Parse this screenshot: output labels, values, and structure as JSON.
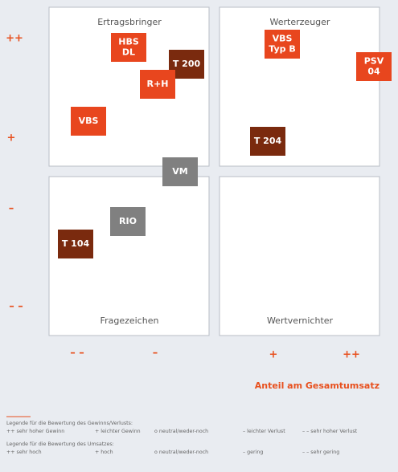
{
  "quadrants": [
    "Ertragsbringer",
    "Werterzeuger",
    "Fragezeichen",
    "Wertvernichter"
  ],
  "y_axis": {
    "labels": [
      "++",
      "+",
      "–",
      "– –"
    ]
  },
  "x_axis": {
    "labels": [
      "– –",
      "–",
      "+",
      "++"
    ],
    "title": "Anteil am Gesamtumsatz"
  },
  "items": [
    {
      "lines": [
        "HBS",
        "DL"
      ],
      "kind": "strong"
    },
    {
      "lines": [
        "T 200"
      ],
      "kind": "dark"
    },
    {
      "lines": [
        "R+H"
      ],
      "kind": "strong"
    },
    {
      "lines": [
        "VBS"
      ],
      "kind": "strong"
    },
    {
      "lines": [
        "VBS",
        "Typ B"
      ],
      "kind": "strong"
    },
    {
      "lines": [
        "PSV",
        "04"
      ],
      "kind": "strong"
    },
    {
      "lines": [
        "T 204"
      ],
      "kind": "dark"
    },
    {
      "lines": [
        "VM"
      ],
      "kind": "grey"
    },
    {
      "lines": [
        "RIO"
      ],
      "kind": "grey"
    },
    {
      "lines": [
        "T 104"
      ],
      "kind": "dark"
    }
  ],
  "legend": [
    {
      "title": "Legende für die Bewertung des Gewinns/Verlusts:",
      "entries": [
        "++ sehr hoher Gewinn",
        "+ leichter Gewinn",
        "o neutral/weder-noch",
        "– leichter Verlust",
        "– – sehr hoher Verlust"
      ]
    },
    {
      "title": "Legende für die Bewertung des Umsatzes:",
      "entries": [
        "++ sehr hoch",
        "+ hoch",
        "o neutral/weder-noch",
        "– gering",
        "– – sehr gering"
      ]
    }
  ]
}
